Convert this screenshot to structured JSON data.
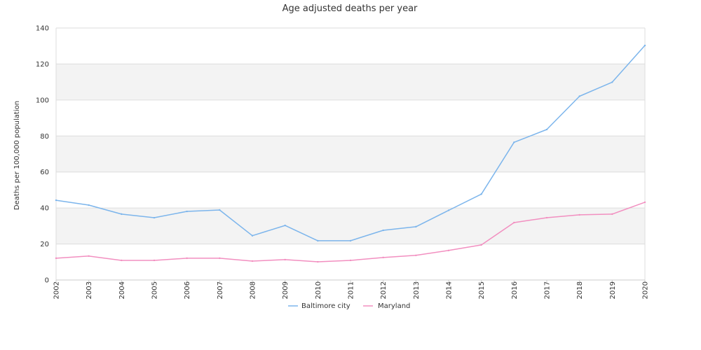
{
  "chart_data": {
    "type": "line",
    "title": "Age adjusted deaths per year",
    "xlabel": "",
    "ylabel": "Deaths per 100,000 population",
    "x": [
      "2002",
      "2003",
      "2004",
      "2005",
      "2006",
      "2007",
      "2008",
      "2009",
      "2010",
      "2011",
      "2012",
      "2013",
      "2014",
      "2015",
      "2016",
      "2017",
      "2018",
      "2019",
      "2020"
    ],
    "ylim": [
      0,
      140
    ],
    "yticks": [
      0,
      20,
      40,
      60,
      80,
      100,
      120,
      140
    ],
    "grid": true,
    "legend_position": "bottom",
    "series": [
      {
        "name": "Baltimore city",
        "color": "#7cb5ec",
        "values": [
          44.3,
          41.6,
          36.6,
          34.6,
          38.1,
          38.9,
          24.6,
          30.3,
          21.8,
          21.8,
          27.6,
          29.6,
          38.7,
          47.7,
          76.5,
          83.6,
          102.1,
          109.9,
          130.3
        ]
      },
      {
        "name": "Maryland",
        "color": "#f28fc0",
        "values": [
          12.1,
          13.3,
          10.9,
          10.9,
          12.1,
          12.1,
          10.5,
          11.3,
          10.1,
          10.9,
          12.5,
          13.7,
          16.4,
          19.5,
          31.9,
          34.6,
          36.2,
          36.6,
          43.2
        ]
      }
    ]
  }
}
